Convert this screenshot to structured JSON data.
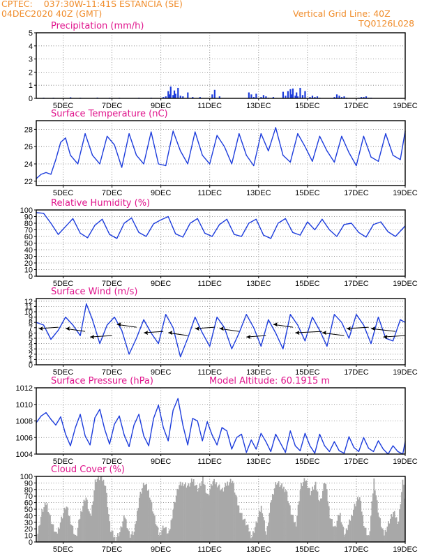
{
  "header": {
    "source": "CPTEC:",
    "location": "037:30W-11:41S   ESTANCIA (SE)",
    "datetime": "04DEC2020 40Z (GMT)",
    "gridline": "Vertical Grid Line: 40Z",
    "code": "TQ0126L028"
  },
  "colors": {
    "header": "#f08c2a",
    "title": "#e0148c",
    "line": "#1c3cdc",
    "bar": "#1c3cdc",
    "cloud": "#a8a8a8"
  },
  "x_axis": {
    "categories": [
      "5DEC",
      "7DEC",
      "9DEC",
      "11DEC",
      "13DEC",
      "15DEC",
      "17DEC",
      "19DEC"
    ]
  },
  "chart_data": [
    {
      "type": "bar",
      "title": "Precipitation (mm/h)",
      "ylim": [
        0,
        5
      ],
      "yticks": [
        0,
        1,
        2,
        3,
        4,
        5
      ],
      "x": [
        4.2,
        4.6,
        5.3,
        5.7,
        6.4,
        6.9,
        7.3,
        8.1,
        8.6,
        9.1,
        9.2,
        9.3,
        9.35,
        9.4,
        9.5,
        9.55,
        9.6,
        9.7,
        9.8,
        9.9,
        10.1,
        10.3,
        10.6,
        11.1,
        11.2,
        11.4,
        12.6,
        12.7,
        12.8,
        12.9,
        13.1,
        13.2,
        13.3,
        13.4,
        13.6,
        14.0,
        14.1,
        14.2,
        14.3,
        14.35,
        14.4,
        14.5,
        14.55,
        14.6,
        14.7,
        14.8,
        14.9,
        15.1,
        15.2,
        15.3,
        15.4,
        15.5,
        16.1,
        16.2,
        16.3,
        16.4,
        16.5,
        16.6,
        17.1,
        17.2,
        17.3,
        17.4,
        17.5,
        17.6
      ],
      "values": [
        0.05,
        0.05,
        0.08,
        0.05,
        0.06,
        0.05,
        0.05,
        0.05,
        0.05,
        0.1,
        0.15,
        0.55,
        0.3,
        0.9,
        0.25,
        0.6,
        0.35,
        0.8,
        0.2,
        0.15,
        0.45,
        0.1,
        0.1,
        0.3,
        0.65,
        0.15,
        0.45,
        0.3,
        0.1,
        0.35,
        0.1,
        0.25,
        0.15,
        0.05,
        0.1,
        0.5,
        0.2,
        0.55,
        0.7,
        0.3,
        0.75,
        0.2,
        0.45,
        0.15,
        0.8,
        0.25,
        0.55,
        0.1,
        0.2,
        0.1,
        0.15,
        0.05,
        0.1,
        0.3,
        0.2,
        0.1,
        0.15,
        0.05,
        0.05,
        0.1,
        0.1,
        0.15,
        0.05,
        0.05
      ]
    },
    {
      "type": "line",
      "title": "Surface Temperature (nC)",
      "ylim": [
        21.5,
        29
      ],
      "yticks": [
        22,
        24,
        26,
        28
      ],
      "x": [
        3.9,
        4.1,
        4.3,
        4.5,
        4.7,
        4.9,
        5.1,
        5.3,
        5.6,
        5.9,
        6.2,
        6.5,
        6.8,
        7.1,
        7.4,
        7.7,
        8.0,
        8.3,
        8.6,
        8.9,
        9.2,
        9.5,
        9.8,
        10.1,
        10.4,
        10.7,
        11.0,
        11.3,
        11.6,
        11.9,
        12.2,
        12.5,
        12.8,
        13.1,
        13.4,
        13.7,
        14.0,
        14.3,
        14.6,
        14.9,
        15.2,
        15.5,
        15.8,
        16.1,
        16.4,
        16.7,
        17.0,
        17.3,
        17.6,
        17.9,
        18.2,
        18.5,
        18.8,
        19.0
      ],
      "values": [
        22.3,
        22.8,
        23.0,
        22.8,
        24.5,
        26.5,
        27.0,
        25.0,
        24.0,
        27.5,
        25.0,
        24.0,
        27.2,
        26.2,
        23.6,
        27.5,
        25.0,
        24.0,
        27.7,
        24.0,
        23.8,
        27.8,
        25.5,
        24.0,
        27.7,
        25.0,
        24.0,
        27.3,
        26.0,
        24.0,
        27.5,
        25.0,
        23.8,
        27.5,
        25.5,
        28.2,
        25.0,
        24.2,
        27.5,
        26.0,
        24.3,
        27.2,
        25.5,
        24.2,
        27.2,
        25.3,
        23.8,
        27.2,
        24.8,
        24.3,
        27.5,
        25.0,
        24.5,
        27.8
      ]
    },
    {
      "type": "line",
      "title": "Relative Humidity (%)",
      "ylim": [
        0,
        100
      ],
      "yticks": [
        0,
        10,
        20,
        30,
        40,
        50,
        60,
        70,
        80,
        90,
        100
      ],
      "x": [
        3.9,
        4.2,
        4.5,
        4.8,
        5.1,
        5.4,
        5.7,
        6.0,
        6.3,
        6.6,
        6.9,
        7.2,
        7.5,
        7.8,
        8.1,
        8.4,
        8.7,
        9.0,
        9.3,
        9.6,
        9.9,
        10.2,
        10.5,
        10.8,
        11.1,
        11.4,
        11.7,
        12.0,
        12.3,
        12.6,
        12.9,
        13.2,
        13.5,
        13.8,
        14.1,
        14.4,
        14.7,
        15.0,
        15.3,
        15.6,
        15.9,
        16.2,
        16.5,
        16.8,
        17.1,
        17.4,
        17.7,
        18.0,
        18.3,
        18.6,
        18.9,
        19.0
      ],
      "values": [
        96,
        95,
        80,
        63,
        75,
        87,
        65,
        58,
        77,
        86,
        63,
        57,
        80,
        88,
        66,
        60,
        79,
        85,
        90,
        64,
        59,
        80,
        87,
        65,
        60,
        78,
        86,
        63,
        60,
        80,
        86,
        62,
        57,
        80,
        87,
        66,
        62,
        82,
        70,
        86,
        70,
        60,
        78,
        80,
        66,
        59,
        78,
        82,
        67,
        60,
        72,
        76
      ]
    },
    {
      "type": "line",
      "title": "Surface Wind (m/s)",
      "ylim": [
        0,
        12.5
      ],
      "yticks": [
        0,
        1,
        2,
        3,
        4,
        5,
        6,
        7,
        8,
        9,
        10,
        11,
        12
      ],
      "x": [
        3.9,
        4.2,
        4.5,
        4.8,
        5.1,
        5.4,
        5.7,
        5.95,
        6.2,
        6.5,
        6.8,
        7.1,
        7.4,
        7.7,
        8.0,
        8.3,
        8.6,
        8.9,
        9.2,
        9.5,
        9.8,
        10.1,
        10.4,
        10.7,
        11.0,
        11.3,
        11.6,
        11.9,
        12.2,
        12.5,
        12.8,
        13.1,
        13.4,
        13.7,
        14.0,
        14.3,
        14.6,
        14.9,
        15.2,
        15.5,
        15.8,
        16.1,
        16.4,
        16.7,
        17.0,
        17.3,
        17.6,
        17.9,
        18.2,
        18.5,
        18.8,
        19.0
      ],
      "values": [
        8.0,
        7.5,
        4.8,
        6.5,
        9.0,
        7.5,
        5.5,
        11.5,
        8.5,
        4.0,
        7.5,
        9.0,
        6.5,
        2.0,
        5.0,
        8.5,
        6.0,
        4.0,
        9.5,
        7.0,
        1.5,
        5.0,
        9.0,
        6.0,
        3.5,
        9.0,
        7.0,
        3.0,
        6.0,
        9.5,
        7.0,
        3.5,
        8.5,
        6.0,
        3.0,
        9.5,
        7.5,
        4.5,
        9.0,
        6.5,
        3.5,
        9.5,
        8.0,
        5.0,
        9.5,
        7.5,
        4.0,
        9.0,
        5.0,
        4.5,
        8.5,
        8.0
      ]
    },
    {
      "type": "line",
      "title": "Surface Pressure (hPa)",
      "annotation": "Model Altitude: 60.1915 m",
      "ylim": [
        1004,
        1012
      ],
      "yticks": [
        1004,
        1006,
        1008,
        1010,
        1012
      ],
      "x": [
        3.9,
        4.1,
        4.3,
        4.5,
        4.7,
        4.9,
        5.1,
        5.3,
        5.5,
        5.7,
        5.9,
        6.1,
        6.3,
        6.5,
        6.7,
        6.9,
        7.1,
        7.3,
        7.5,
        7.7,
        7.9,
        8.1,
        8.3,
        8.5,
        8.7,
        8.9,
        9.1,
        9.3,
        9.5,
        9.7,
        9.9,
        10.1,
        10.3,
        10.5,
        10.7,
        10.9,
        11.1,
        11.3,
        11.5,
        11.7,
        11.9,
        12.1,
        12.3,
        12.5,
        12.7,
        12.9,
        13.1,
        13.3,
        13.5,
        13.7,
        13.9,
        14.1,
        14.3,
        14.5,
        14.7,
        14.9,
        15.1,
        15.3,
        15.5,
        15.7,
        15.9,
        16.1,
        16.3,
        16.5,
        16.7,
        16.9,
        17.1,
        17.3,
        17.5,
        17.7,
        17.9,
        18.1,
        18.3,
        18.5,
        18.7,
        18.9,
        19.0
      ],
      "values": [
        1007.8,
        1008.6,
        1009.0,
        1008.2,
        1007.5,
        1008.5,
        1006.4,
        1005.0,
        1007.2,
        1008.8,
        1006.2,
        1005.1,
        1008.4,
        1009.4,
        1007.0,
        1005.2,
        1007.6,
        1008.6,
        1006.3,
        1004.9,
        1007.5,
        1008.8,
        1006.2,
        1005.0,
        1008.3,
        1009.9,
        1007.2,
        1005.6,
        1009.3,
        1010.7,
        1007.5,
        1005.1,
        1008.3,
        1008.0,
        1005.6,
        1007.9,
        1006.3,
        1005.1,
        1007.2,
        1006.8,
        1004.6,
        1006.0,
        1006.4,
        1004.2,
        1005.7,
        1004.6,
        1006.5,
        1005.5,
        1004.3,
        1006.4,
        1005.3,
        1004.2,
        1006.8,
        1005.0,
        1004.4,
        1006.5,
        1005.0,
        1004.1,
        1006.4,
        1005.0,
        1004.3,
        1005.5,
        1004.4,
        1004.1,
        1006.1,
        1004.8,
        1004.3,
        1006.0,
        1004.7,
        1004.3,
        1005.6,
        1004.6,
        1004.0,
        1005.0,
        1004.3,
        1004.0,
        1005.5
      ]
    },
    {
      "type": "area",
      "title": "Cloud Cover (%)",
      "ylim": [
        0,
        100
      ],
      "yticks": [
        0,
        10,
        20,
        30,
        40,
        50,
        60,
        70,
        80,
        90,
        100
      ],
      "x": [
        3.9,
        4.1,
        4.3,
        4.5,
        4.7,
        4.9,
        5.1,
        5.3,
        5.5,
        5.7,
        5.9,
        6.1,
        6.3,
        6.5,
        6.7,
        6.9,
        7.1,
        7.3,
        7.5,
        7.7,
        7.9,
        8.1,
        8.3,
        8.5,
        8.7,
        8.9,
        9.1,
        9.3,
        9.5,
        9.7,
        9.9,
        10.1,
        10.3,
        10.5,
        10.7,
        10.9,
        11.1,
        11.3,
        11.5,
        11.7,
        11.9,
        12.1,
        12.3,
        12.5,
        12.7,
        12.9,
        13.1,
        13.3,
        13.5,
        13.7,
        13.9,
        14.1,
        14.3,
        14.5,
        14.7,
        14.9,
        15.1,
        15.3,
        15.5,
        15.7,
        15.9,
        16.1,
        16.3,
        16.5,
        16.7,
        16.9,
        17.1,
        17.3,
        17.5,
        17.7,
        17.9,
        18.1,
        18.3,
        18.5,
        18.7,
        18.9,
        19.0
      ],
      "values": [
        5,
        45,
        60,
        30,
        10,
        35,
        55,
        30,
        5,
        45,
        70,
        35,
        95,
        98,
        90,
        20,
        5,
        15,
        40,
        10,
        15,
        70,
        90,
        75,
        40,
        10,
        25,
        10,
        55,
        85,
        90,
        85,
        95,
        80,
        95,
        70,
        92,
        88,
        78,
        90,
        95,
        60,
        40,
        25,
        8,
        30,
        55,
        10,
        65,
        92,
        85,
        80,
        45,
        25,
        85,
        95,
        75,
        88,
        60,
        95,
        40,
        20,
        45,
        10,
        30,
        55,
        70,
        25,
        5,
        95,
        40,
        10,
        30,
        45,
        30,
        100,
        40
      ]
    }
  ]
}
